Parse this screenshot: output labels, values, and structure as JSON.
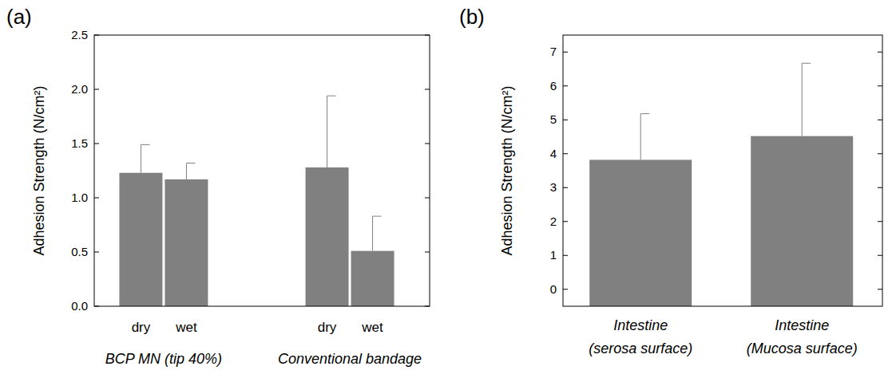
{
  "chart_data": [
    {
      "type": "bar",
      "panel_label": "(a)",
      "y_label": "Adhesion Strength (N/cm²)",
      "categories": [
        "dry",
        "wet",
        "dry",
        "wet"
      ],
      "groups": [
        "BCP MN (tip 40%)",
        "Conventional bandage"
      ],
      "values": [
        1.23,
        1.17,
        1.28,
        0.51
      ],
      "errors": [
        0.26,
        0.15,
        0.66,
        0.32
      ],
      "color": "#808080",
      "ylim": [
        0,
        2.5
      ],
      "yticks": [
        {
          "value": 0,
          "label": "0.0"
        },
        {
          "value": 0.5,
          "label": "0.5"
        },
        {
          "value": 1,
          "label": "1.0"
        },
        {
          "value": 1.5,
          "label": "1.5"
        },
        {
          "value": 2,
          "label": "2.0"
        },
        {
          "value": 2.5,
          "label": "2.5"
        }
      ],
      "grid": false
    },
    {
      "type": "bar",
      "panel_label": "(b)",
      "y_label": "Adhesion Strength (N/cm²)",
      "categories": [
        "Intestine\n(serosa surface)",
        "Intestine\n(Mucosa surface)"
      ],
      "values": [
        3.82,
        4.52
      ],
      "errors": [
        1.36,
        2.15
      ],
      "color": "#808080",
      "ylim": [
        -0.5,
        7.5
      ],
      "yticks": [
        0,
        1,
        2,
        3,
        4,
        5,
        6,
        7
      ],
      "grid": false
    }
  ]
}
